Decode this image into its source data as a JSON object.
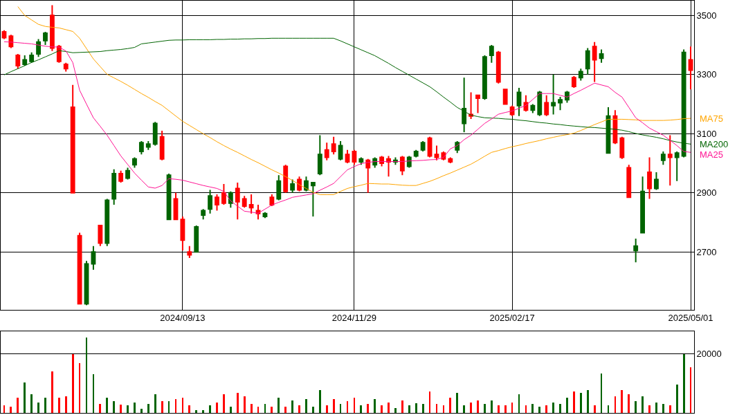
{
  "chart_data": [
    {
      "type": "candlestick",
      "categories": [
        null,
        null,
        null,
        null,
        null,
        null,
        null,
        null,
        null,
        null,
        null,
        null,
        null,
        null,
        null,
        null,
        null,
        null,
        null,
        null,
        null,
        null,
        null,
        null,
        null,
        null,
        "2024/09/13",
        null,
        null,
        null,
        null,
        null,
        null,
        null,
        null,
        null,
        null,
        null,
        null,
        null,
        null,
        null,
        null,
        null,
        null,
        null,
        null,
        null,
        null,
        null,
        null,
        "2024/11/29",
        null,
        null,
        null,
        null,
        null,
        null,
        null,
        null,
        null,
        null,
        null,
        null,
        null,
        null,
        null,
        null,
        null,
        null,
        null,
        null,
        null,
        null,
        "2025/02/17",
        null,
        null,
        null,
        null,
        null,
        null,
        null,
        null,
        null,
        null,
        null,
        null,
        null,
        null,
        null,
        null,
        null,
        null,
        null,
        null,
        null,
        null,
        null,
        null,
        null,
        "2025/05/01"
      ],
      "ohlc": [
        [
          3445,
          3450,
          3420,
          3425
        ],
        [
          3430,
          3435,
          3390,
          3395
        ],
        [
          3365,
          3370,
          3320,
          3330
        ],
        [
          3335,
          3365,
          3330,
          3350
        ],
        [
          3345,
          3375,
          3340,
          3365
        ],
        [
          3370,
          3420,
          3360,
          3410
        ],
        [
          3415,
          3445,
          3400,
          3440
        ],
        [
          3500,
          3535,
          3380,
          3390
        ],
        [
          3395,
          3400,
          3340,
          3345
        ],
        [
          3335,
          3340,
          3310,
          3320
        ],
        [
          3190,
          3265,
          2900,
          2900
        ],
        [
          2755,
          2765,
          2525,
          2525
        ],
        [
          2525,
          2670,
          2520,
          2660
        ],
        [
          2660,
          2720,
          2640,
          2700
        ],
        [
          2790,
          2790,
          2720,
          2730
        ],
        [
          2730,
          2880,
          2720,
          2875
        ],
        [
          2880,
          2980,
          2860,
          2965
        ],
        [
          2965,
          2975,
          2935,
          2940
        ],
        [
          2950,
          2985,
          2945,
          2975
        ],
        [
          2995,
          3020,
          2985,
          3015
        ],
        [
          3040,
          3075,
          3030,
          3070
        ],
        [
          3055,
          3075,
          3045,
          3065
        ],
        [
          3065,
          3140,
          3060,
          3135
        ],
        [
          3090,
          3110,
          3010,
          3015
        ],
        [
          2810,
          2965,
          2810,
          2960
        ],
        [
          2880,
          2900,
          2810,
          2810
        ],
        [
          2810,
          2820,
          2705,
          2740
        ],
        [
          2700,
          2720,
          2680,
          2690
        ],
        [
          2700,
          2790,
          2700,
          2785
        ],
        [
          2825,
          2845,
          2810,
          2840
        ],
        [
          2845,
          2910,
          2830,
          2890
        ],
        [
          2885,
          2895,
          2840,
          2860
        ],
        [
          2900,
          2930,
          2860,
          2865
        ],
        [
          2865,
          2905,
          2850,
          2900
        ],
        [
          2915,
          2935,
          2810,
          2870
        ],
        [
          2880,
          2890,
          2850,
          2855
        ],
        [
          2860,
          2895,
          2830,
          2850
        ],
        [
          2840,
          2860,
          2810,
          2830
        ],
        [
          2820,
          2835,
          2815,
          2830
        ],
        [
          2885,
          2895,
          2855,
          2860
        ],
        [
          2880,
          2960,
          2875,
          2940
        ],
        [
          2990,
          2995,
          2900,
          2905
        ],
        [
          2910,
          2945,
          2900,
          2930
        ],
        [
          2945,
          2955,
          2905,
          2910
        ],
        [
          2910,
          2955,
          2905,
          2940
        ],
        [
          2925,
          2935,
          2820,
          2935
        ],
        [
          2965,
          3095,
          2960,
          3030
        ],
        [
          3045,
          3070,
          3010,
          3020
        ],
        [
          3065,
          3090,
          3030,
          3040
        ],
        [
          3015,
          3075,
          3010,
          3060
        ],
        [
          3030,
          3045,
          3000,
          3005
        ],
        [
          3040,
          3045,
          2995,
          3005
        ],
        [
          3005,
          3020,
          2995,
          3015
        ],
        [
          3010,
          3015,
          2900,
          2985
        ],
        [
          2995,
          3020,
          2985,
          3015
        ],
        [
          3020,
          3025,
          2990,
          3000
        ],
        [
          3015,
          3025,
          2955,
          3005
        ],
        [
          3005,
          3020,
          2995,
          3010
        ],
        [
          3020,
          3025,
          2960,
          2975
        ],
        [
          2990,
          3025,
          2985,
          3020
        ],
        [
          3025,
          3045,
          3020,
          3040
        ],
        [
          3045,
          3075,
          3040,
          3070
        ],
        [
          3085,
          3090,
          3020,
          3025
        ],
        [
          3030,
          3060,
          3010,
          3020
        ],
        [
          3035,
          3040,
          3010,
          3015
        ],
        [
          3015,
          3020,
          3000,
          3005
        ],
        [
          3045,
          3075,
          3035,
          3070
        ],
        [
          3135,
          3290,
          3105,
          3185
        ],
        [
          3165,
          3240,
          3150,
          3160
        ],
        [
          3230,
          3230,
          3170,
          3220
        ],
        [
          3220,
          3365,
          3215,
          3360
        ],
        [
          3365,
          3400,
          3340,
          3395
        ],
        [
          3375,
          3380,
          3270,
          3275
        ],
        [
          3250,
          3250,
          3200,
          3200
        ],
        [
          3190,
          3195,
          3160,
          3165
        ],
        [
          3195,
          3255,
          3160,
          3240
        ],
        [
          3205,
          3230,
          3175,
          3180
        ],
        [
          3180,
          3200,
          3170,
          3195
        ],
        [
          3165,
          3245,
          3160,
          3240
        ],
        [
          3205,
          3230,
          3160,
          3165
        ],
        [
          3195,
          3300,
          3165,
          3205
        ],
        [
          3205,
          3225,
          3180,
          3215
        ],
        [
          3215,
          3245,
          3205,
          3240
        ],
        [
          3290,
          3295,
          3255,
          3260
        ],
        [
          3290,
          3320,
          3280,
          3310
        ],
        [
          3320,
          3390,
          3300,
          3380
        ],
        [
          3395,
          3410,
          3275,
          3350
        ],
        [
          3355,
          3385,
          3340,
          3370
        ],
        [
          3035,
          3190,
          3035,
          3160
        ],
        [
          3160,
          3180,
          3065,
          3070
        ],
        [
          3085,
          3090,
          3015,
          3020
        ],
        [
          2985,
          2995,
          2885,
          2885
        ],
        [
          2705,
          2745,
          2665,
          2720
        ],
        [
          2765,
          2955,
          2765,
          2905
        ],
        [
          2970,
          3020,
          2880,
          2915
        ],
        [
          2915,
          2970,
          2910,
          2945
        ],
        [
          3010,
          3040,
          2995,
          3030
        ],
        [
          3030,
          3095,
          2925,
          3020
        ],
        [
          3020,
          3040,
          2940,
          3035
        ],
        [
          3025,
          3385,
          3020,
          3375
        ],
        [
          3350,
          3395,
          3250,
          3315
        ]
      ],
      "colors": [
        "#ff0000",
        "#ff0000",
        "#ff0000",
        "#006400",
        "#006400",
        "#006400",
        "#006400",
        "#ff0000",
        "#ff0000",
        "#ff0000",
        "#ff0000",
        "#ff0000",
        "#006400",
        "#006400",
        "#ff0000",
        "#006400",
        "#006400",
        "#ff0000",
        "#006400",
        "#006400",
        "#006400",
        "#006400",
        "#006400",
        "#ff0000",
        "#006400",
        "#ff0000",
        "#ff0000",
        "#ff0000",
        "#006400",
        "#006400",
        "#006400",
        "#ff0000",
        "#ff0000",
        "#006400",
        "#ff0000",
        "#ff0000",
        "#ff0000",
        "#ff0000",
        "#006400",
        "#ff0000",
        "#006400",
        "#ff0000",
        "#006400",
        "#ff0000",
        "#006400",
        "#006400",
        "#006400",
        "#ff0000",
        "#ff0000",
        "#006400",
        "#ff0000",
        "#ff0000",
        "#006400",
        "#ff0000",
        "#006400",
        "#ff0000",
        "#ff0000",
        "#006400",
        "#ff0000",
        "#006400",
        "#006400",
        "#006400",
        "#ff0000",
        "#ff0000",
        "#ff0000",
        "#ff0000",
        "#006400",
        "#006400",
        "#ff0000",
        "#ff0000",
        "#006400",
        "#006400",
        "#ff0000",
        "#ff0000",
        "#ff0000",
        "#006400",
        "#ff0000",
        "#006400",
        "#006400",
        "#ff0000",
        "#006400",
        "#006400",
        "#006400",
        "#ff0000",
        "#006400",
        "#006400",
        "#ff0000",
        "#006400",
        "#006400",
        "#ff0000",
        "#ff0000",
        "#ff0000",
        "#006400",
        "#006400",
        "#ff0000",
        "#006400",
        "#006400",
        "#ff0000",
        "#006400",
        "#006400",
        "#ff0000"
      ],
      "series": [
        {
          "name": "MA75",
          "type": "line",
          "color": "#ffa500",
          "values": [
            null,
            null,
            3530,
            3500,
            3485,
            3470,
            3463,
            3460,
            3458,
            3452,
            3446,
            3423,
            3388,
            3353,
            3327,
            3301,
            3289,
            3277,
            3264,
            3250,
            3236,
            3223,
            3209,
            3196,
            3178,
            3160,
            3142,
            3128,
            3114,
            3100,
            3087,
            3073,
            3060,
            3048,
            3037,
            3025,
            3013,
            3002,
            2990,
            2978,
            2967,
            2955,
            2942,
            2928,
            2915,
            2902,
            2894,
            2894,
            2894,
            2905,
            2915,
            2921,
            2926,
            2932,
            2931,
            2930,
            2930,
            2928,
            2926,
            2925,
            2925,
            2932,
            2939,
            2948,
            2958,
            2967,
            2977,
            2987,
            2997,
            3010,
            3024,
            3037,
            3043,
            3050,
            3056,
            3061,
            3067,
            3072,
            3077,
            3083,
            3088,
            3093,
            3097,
            3102,
            3111,
            3121,
            3131,
            3140,
            3149,
            3149,
            3149,
            3148,
            3147,
            3145,
            3145,
            3145,
            3145,
            3146,
            3148,
            3151,
            3152
          ]
        },
        {
          "name": "MA200",
          "type": "line",
          "color": "#006400",
          "values": [
            3299,
            3310,
            3320,
            3330,
            3341,
            3350,
            3360,
            3370,
            3381,
            3378,
            3374,
            3375,
            3376,
            3377,
            3378,
            3381,
            3383,
            3385,
            3388,
            3392,
            3404,
            3407,
            3410,
            3413,
            3416,
            3417,
            3417,
            3418,
            3418,
            3418,
            3418,
            3419,
            3419,
            3420,
            3420,
            3421,
            3421,
            3422,
            3422,
            3423,
            3423,
            3423,
            3423,
            3423,
            3423,
            3423,
            3423,
            3423,
            3423,
            3414,
            3404,
            3394,
            3384,
            3374,
            3364,
            3351,
            3338,
            3324,
            3311,
            3298,
            3285,
            3272,
            3259,
            3242,
            3224,
            3207,
            3189,
            3176,
            3163,
            3158,
            3154,
            3153,
            3152,
            3150,
            3149,
            3146,
            3144,
            3141,
            3138,
            3136,
            3133,
            3131,
            3128,
            3126,
            3124,
            3122,
            3121,
            3119,
            3117,
            3115,
            3112,
            3107,
            3101,
            3096,
            3092,
            3088,
            3083,
            3077,
            3072,
            3068,
            3065
          ]
        },
        {
          "name": "MA25",
          "type": "line",
          "color": "#ff1493",
          "values": [
            3411,
            3410,
            3408,
            3406,
            3404,
            3400,
            3396,
            3394,
            3393,
            3380,
            3341,
            3247,
            3200,
            3154,
            3125,
            3095,
            3060,
            3025,
            2996,
            2967,
            2943,
            2920,
            2916,
            2925,
            2948,
            2946,
            2943,
            2937,
            2931,
            2925,
            2920,
            2915,
            2905,
            2873,
            2855,
            2838,
            2835,
            2831,
            2845,
            2859,
            2868,
            2876,
            2885,
            2889,
            2893,
            2897,
            2909,
            2920,
            2932,
            2955,
            2978,
            2989,
            2999,
            3003,
            3006,
            3006,
            3006,
            3006,
            3006,
            3008,
            3009,
            3010,
            3012,
            3013,
            3020,
            3049,
            3060,
            3080,
            3095,
            3115,
            3135,
            3150,
            3166,
            3172,
            3177,
            3186,
            3196,
            3216,
            3236,
            3236,
            3236,
            3230,
            3224,
            3236,
            3247,
            3259,
            3271,
            3265,
            3259,
            3240,
            3224,
            3189,
            3154,
            3137,
            3119,
            3107,
            3095,
            3078,
            3060,
            3040,
            3037
          ]
        }
      ],
      "ylim": [
        2505,
        3550
      ],
      "yticks": [
        2700,
        2900,
        3100,
        3300,
        3500
      ],
      "grid": true
    },
    {
      "type": "bar",
      "ylim": [
        0,
        27400
      ],
      "yticks": [
        20000
      ],
      "grid": "y",
      "categories": [
        null,
        null,
        null,
        null,
        null,
        null,
        null,
        null,
        null,
        null,
        null,
        null,
        null,
        null,
        null,
        null,
        null,
        null,
        null,
        null,
        null,
        null,
        null,
        null,
        null,
        null,
        null,
        null,
        null,
        null,
        null,
        null,
        null,
        null,
        null,
        null,
        null,
        null,
        null,
        null,
        null,
        null,
        null,
        null,
        null,
        null,
        null,
        null,
        null,
        null,
        null,
        null,
        null,
        null,
        null,
        null,
        null,
        null,
        null,
        null,
        null,
        null,
        null,
        null,
        null,
        null,
        null,
        null,
        null,
        null,
        null,
        null,
        null,
        null,
        null,
        null,
        null,
        null,
        null,
        null,
        null,
        null,
        null,
        null,
        null,
        null,
        null,
        null,
        null,
        null,
        null,
        null,
        null,
        null,
        null,
        null,
        null,
        null,
        null,
        null,
        null
      ],
      "values": [
        2500,
        2000,
        5100,
        10100,
        6300,
        3500,
        5100,
        13900,
        5100,
        5600,
        19800,
        16700,
        25400,
        12900,
        3000,
        5100,
        3800,
        2800,
        2500,
        3500,
        1300,
        3000,
        6300,
        3800,
        3800,
        4600,
        5100,
        2500,
        1000,
        1000,
        2500,
        3500,
        6300,
        2000,
        6800,
        5600,
        3000,
        2000,
        3000,
        2000,
        5100,
        2000,
        4100,
        2500,
        4600,
        2000,
        7600,
        2500,
        4600,
        3000,
        3800,
        5100,
        2500,
        3000,
        4600,
        2500,
        3500,
        1500,
        4100,
        2500,
        3300,
        3000,
        7100,
        3000,
        2500,
        5100,
        6600,
        2500,
        3500,
        4100,
        3000,
        4100,
        2500,
        2500,
        3500,
        6300,
        2500,
        3000,
        2000,
        2500,
        3500,
        3000,
        5100,
        7100,
        6600,
        7600,
        2500,
        13200,
        2500,
        5600,
        7600,
        6300,
        3800,
        5600,
        2500,
        3500,
        3000,
        2500,
        9400,
        19800,
        15200
      ],
      "colors": [
        "#ff0000",
        "#ff0000",
        "#ff0000",
        "#006400",
        "#006400",
        "#006400",
        "#006400",
        "#ff0000",
        "#ff0000",
        "#ff0000",
        "#ff0000",
        "#ff0000",
        "#006400",
        "#006400",
        "#ff0000",
        "#006400",
        "#006400",
        "#ff0000",
        "#006400",
        "#006400",
        "#006400",
        "#006400",
        "#006400",
        "#ff0000",
        "#006400",
        "#ff0000",
        "#ff0000",
        "#ff0000",
        "#006400",
        "#006400",
        "#006400",
        "#ff0000",
        "#ff0000",
        "#006400",
        "#ff0000",
        "#ff0000",
        "#ff0000",
        "#ff0000",
        "#006400",
        "#ff0000",
        "#006400",
        "#ff0000",
        "#006400",
        "#ff0000",
        "#006400",
        "#006400",
        "#006400",
        "#ff0000",
        "#ff0000",
        "#006400",
        "#ff0000",
        "#ff0000",
        "#006400",
        "#ff0000",
        "#006400",
        "#ff0000",
        "#ff0000",
        "#006400",
        "#ff0000",
        "#006400",
        "#006400",
        "#006400",
        "#ff0000",
        "#ff0000",
        "#ff0000",
        "#ff0000",
        "#006400",
        "#006400",
        "#ff0000",
        "#ff0000",
        "#006400",
        "#006400",
        "#ff0000",
        "#ff0000",
        "#ff0000",
        "#006400",
        "#ff0000",
        "#006400",
        "#006400",
        "#ff0000",
        "#006400",
        "#006400",
        "#006400",
        "#ff0000",
        "#006400",
        "#006400",
        "#ff0000",
        "#006400",
        "#006400",
        "#ff0000",
        "#ff0000",
        "#ff0000",
        "#006400",
        "#006400",
        "#ff0000",
        "#006400",
        "#006400",
        "#ff0000",
        "#006400",
        "#006400",
        "#ff0000"
      ]
    }
  ]
}
